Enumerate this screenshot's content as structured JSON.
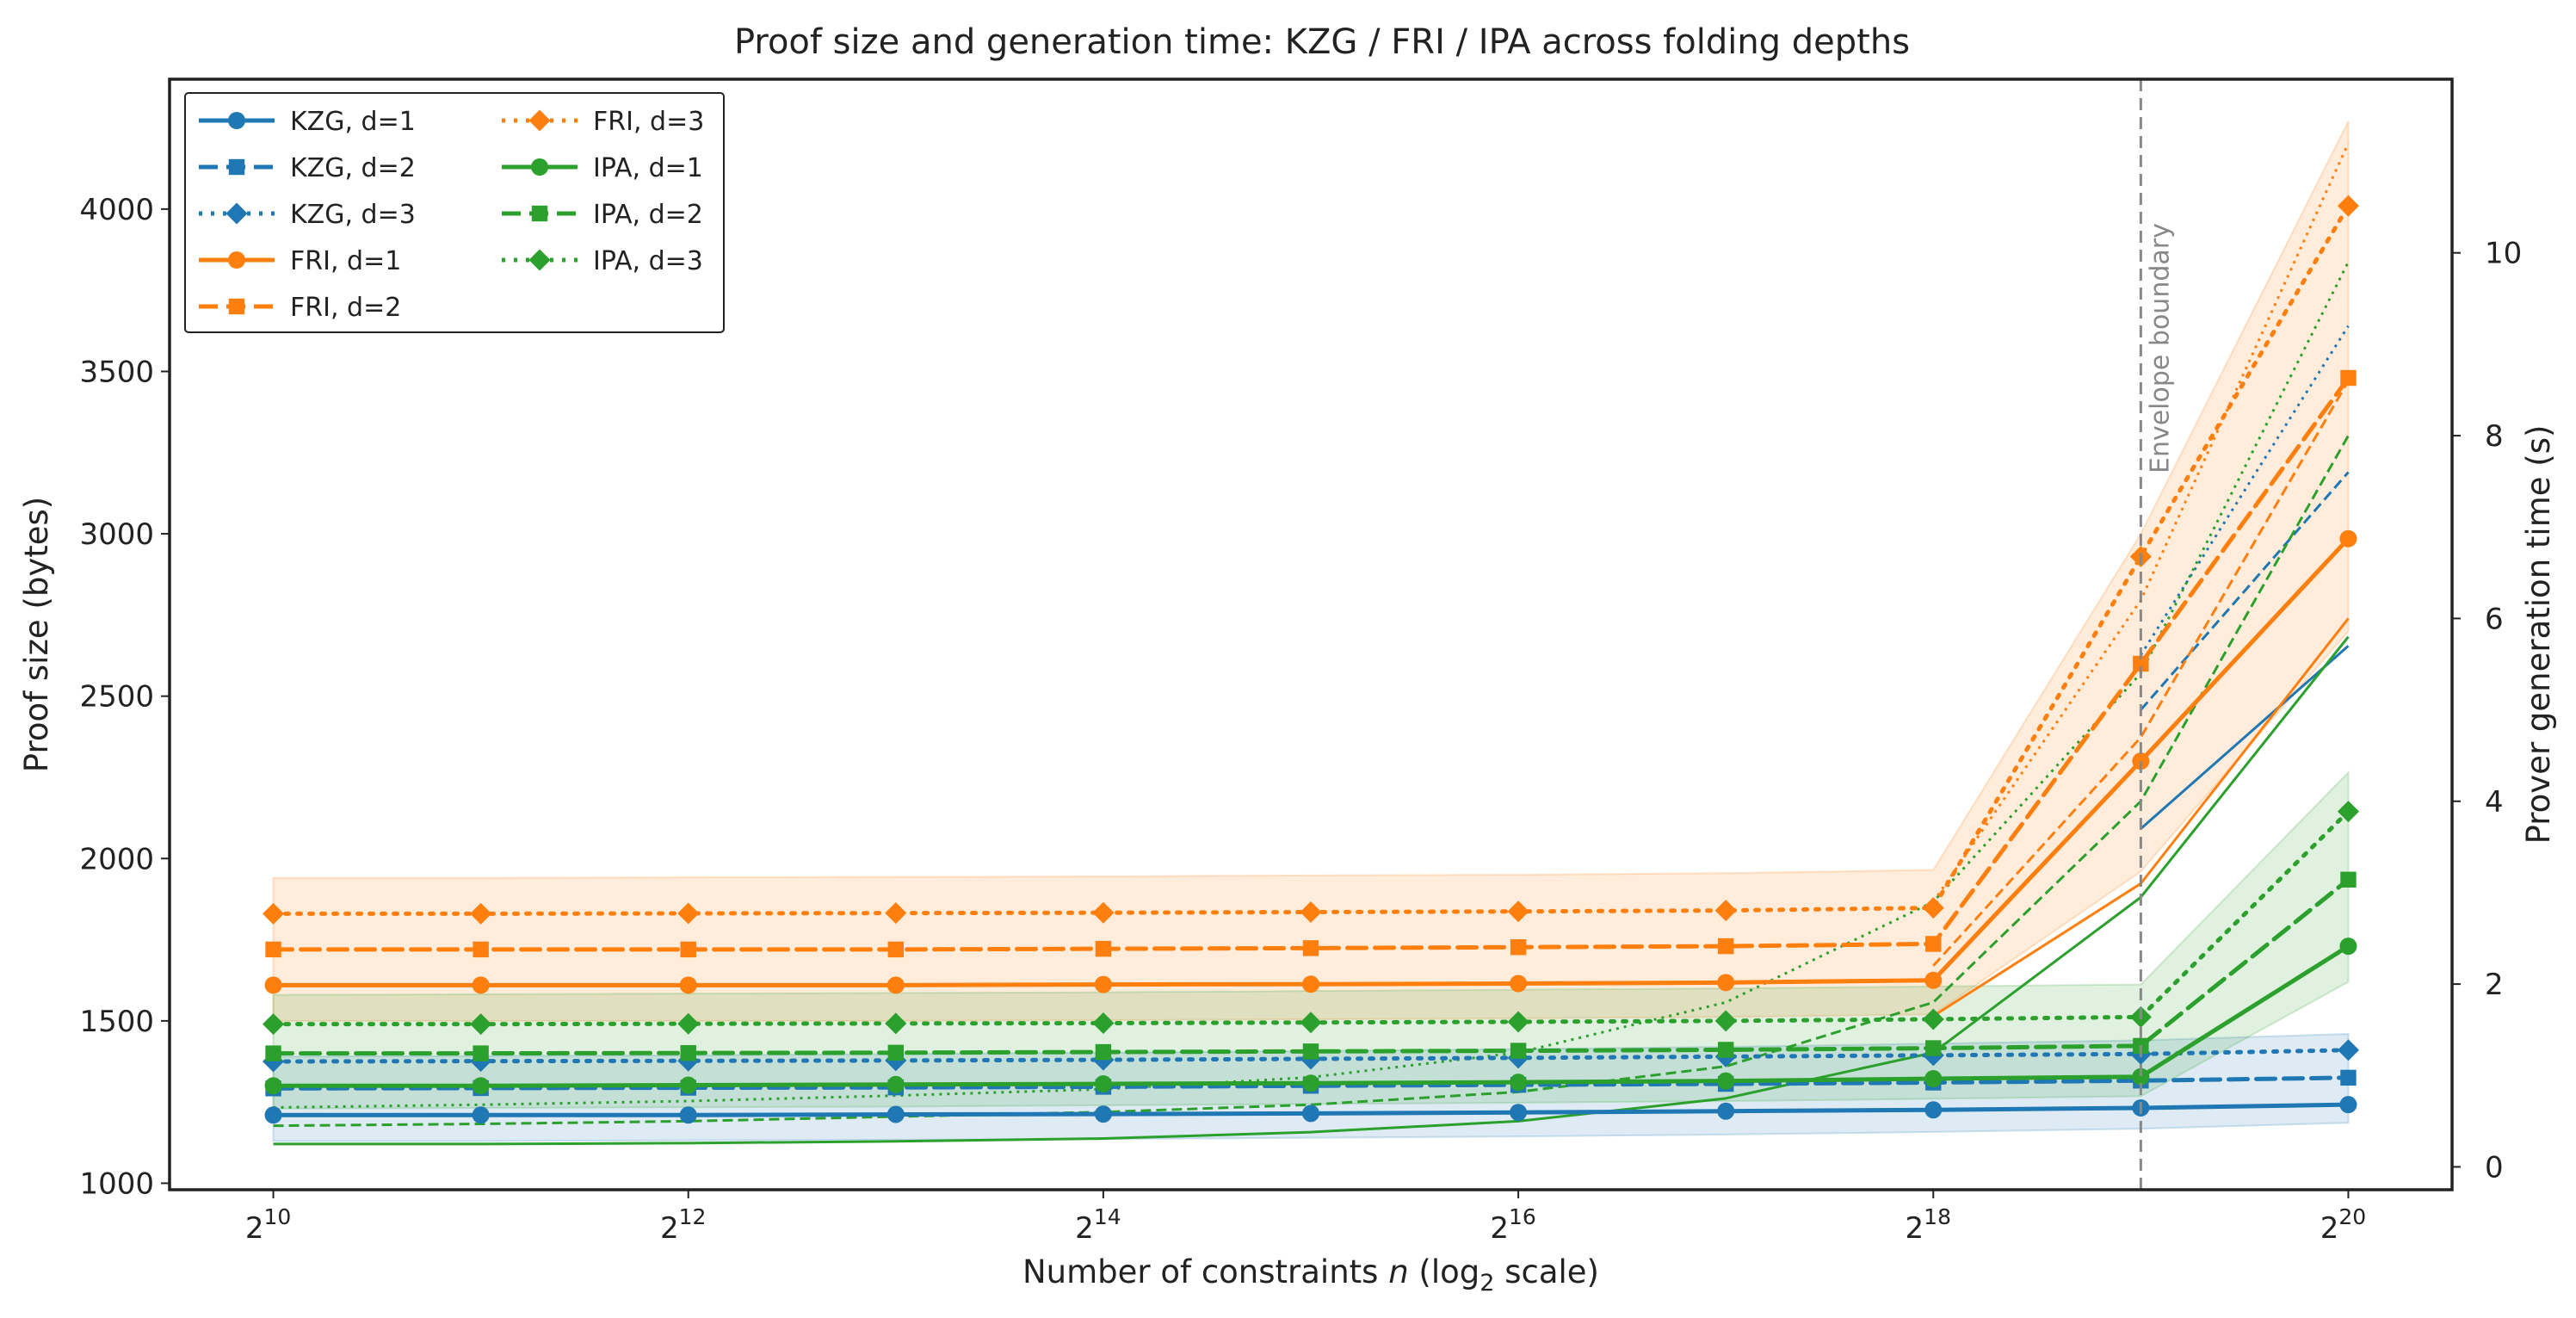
{
  "chart_data": {
    "type": "line",
    "title": "Proof size and generation time: KZG / FRI / IPA across folding depths",
    "xlabel": "Number of constraints n (log2 scale)",
    "ylabel": "Proof size (bytes)",
    "y2label": "Prover generation time (s)",
    "x_exponents": [
      10,
      11,
      12,
      13,
      14,
      15,
      16,
      17,
      18,
      19,
      20
    ],
    "xticks": [
      10,
      12,
      14,
      16,
      18,
      20
    ],
    "xtick_base": "2",
    "xlim": [
      9.5,
      20.5
    ],
    "ylim": [
      980,
      4400
    ],
    "yticks": [
      1000,
      1500,
      2000,
      2500,
      3000,
      3500,
      4000
    ],
    "y2lim": [
      -0.25,
      11.9
    ],
    "y2ticks": [
      0,
      2,
      4,
      6,
      8,
      10
    ],
    "colors": {
      "KZG": "#1f77b4",
      "FRI": "#ff7f0e",
      "IPA": "#2ca02c"
    },
    "series": [
      {
        "name": "KZG, d=1",
        "scheme": "KZG",
        "depth": 1,
        "marker": "circle",
        "dash": "solid",
        "band": 0,
        "values": [
          1210,
          1210,
          1210,
          1212,
          1213,
          1215,
          1218,
          1222,
          1226,
          1232,
          1242
        ]
      },
      {
        "name": "KZG, d=2",
        "scheme": "KZG",
        "depth": 2,
        "marker": "square",
        "dash": "dashed",
        "band": 0,
        "values": [
          1292,
          1293,
          1294,
          1295,
          1297,
          1300,
          1303,
          1306,
          1310,
          1316,
          1325
        ]
      },
      {
        "name": "KZG, d=3",
        "scheme": "KZG",
        "depth": 3,
        "marker": "diamond",
        "dash": "dotted",
        "band": 0,
        "values": [
          1375,
          1376,
          1377,
          1378,
          1380,
          1383,
          1386,
          1390,
          1394,
          1398,
          1410
        ]
      },
      {
        "name": "FRI, d=1",
        "scheme": "FRI",
        "depth": 1,
        "marker": "circle",
        "dash": "solid",
        "band": 1,
        "values": [
          1610,
          1610,
          1610,
          1610,
          1612,
          1613,
          1615,
          1618,
          1625,
          2300,
          2985
        ]
      },
      {
        "name": "FRI, d=2",
        "scheme": "FRI",
        "depth": 2,
        "marker": "square",
        "dash": "dashed",
        "band": 1,
        "values": [
          1720,
          1720,
          1720,
          1720,
          1722,
          1724,
          1727,
          1730,
          1737,
          2600,
          3480
        ]
      },
      {
        "name": "FRI, d=3",
        "scheme": "FRI",
        "depth": 3,
        "marker": "diamond",
        "dash": "dotted",
        "band": 1,
        "values": [
          1830,
          1830,
          1831,
          1832,
          1833,
          1835,
          1837,
          1840,
          1848,
          2930,
          4010
        ]
      },
      {
        "name": "IPA, d=1",
        "scheme": "IPA",
        "depth": 1,
        "marker": "circle",
        "dash": "solid",
        "band": 2,
        "values": [
          1300,
          1300,
          1302,
          1304,
          1306,
          1308,
          1311,
          1315,
          1322,
          1328,
          1730
        ]
      },
      {
        "name": "IPA, d=2",
        "scheme": "IPA",
        "depth": 2,
        "marker": "square",
        "dash": "dashed",
        "band": 2,
        "values": [
          1400,
          1400,
          1401,
          1402,
          1404,
          1406,
          1408,
          1411,
          1416,
          1423,
          1935
        ]
      },
      {
        "name": "IPA, d=3",
        "scheme": "IPA",
        "depth": 3,
        "marker": "diamond",
        "dash": "dotted",
        "band": 2,
        "values": [
          1490,
          1490,
          1491,
          1492,
          1493,
          1495,
          1497,
          1500,
          1505,
          1512,
          2145
        ]
      }
    ],
    "bands": [
      {
        "scheme": "KZG",
        "lower": [
          1130,
          1130,
          1132,
          1134,
          1136,
          1140,
          1144,
          1150,
          1158,
          1168,
          1186
        ],
        "upper": [
          1390,
          1392,
          1394,
          1398,
          1402,
          1407,
          1413,
          1420,
          1430,
          1440,
          1460
        ]
      },
      {
        "scheme": "FRI",
        "lower": [
          1500,
          1500,
          1500,
          1500,
          1502,
          1505,
          1508,
          1512,
          1520,
          1960,
          2700
        ],
        "upper": [
          1940,
          1940,
          1942,
          1943,
          1945,
          1948,
          1950,
          1955,
          1965,
          3000,
          4270
        ]
      },
      {
        "scheme": "IPA",
        "lower": [
          1230,
          1232,
          1234,
          1236,
          1240,
          1244,
          1248,
          1253,
          1260,
          1268,
          1620
        ],
        "upper": [
          1580,
          1582,
          1584,
          1586,
          1588,
          1592,
          1596,
          1600,
          1606,
          1612,
          2265
        ]
      }
    ],
    "time_series": [
      {
        "name": "KZG time d=1",
        "scheme": "KZG",
        "dash": "solid",
        "x": [
          19,
          20
        ],
        "values": [
          3.7,
          5.7
        ]
      },
      {
        "name": "KZG time d=2",
        "scheme": "KZG",
        "dash": "dashed",
        "x": [
          19,
          20
        ],
        "values": [
          5.0,
          7.6
        ]
      },
      {
        "name": "KZG time d=3",
        "scheme": "KZG",
        "dash": "dotted",
        "x": [
          19,
          20
        ],
        "values": [
          5.6,
          9.2
        ]
      },
      {
        "name": "FRI time d=1",
        "scheme": "FRI",
        "dash": "solid",
        "x": [
          18,
          19,
          20
        ],
        "values": [
          1.65,
          3.1,
          6.0
        ]
      },
      {
        "name": "FRI time d=2",
        "scheme": "FRI",
        "dash": "dashed",
        "x": [
          18,
          19,
          20
        ],
        "values": [
          2.2,
          4.7,
          8.6
        ]
      },
      {
        "name": "FRI time d=3",
        "scheme": "FRI",
        "dash": "dotted",
        "x": [
          18,
          19,
          20
        ],
        "values": [
          2.9,
          6.2,
          11.2
        ]
      },
      {
        "name": "IPA time d=1",
        "scheme": "IPA",
        "dash": "solid",
        "x": [
          10,
          11,
          12,
          13,
          14,
          15,
          16,
          17,
          18,
          19,
          20
        ],
        "values": [
          0.25,
          0.25,
          0.26,
          0.28,
          0.31,
          0.38,
          0.5,
          0.75,
          1.25,
          2.95,
          5.8
        ]
      },
      {
        "name": "IPA time d=2",
        "scheme": "IPA",
        "dash": "dashed",
        "x": [
          10,
          11,
          12,
          13,
          14,
          15,
          16,
          17,
          18,
          19,
          20
        ],
        "values": [
          0.45,
          0.47,
          0.5,
          0.55,
          0.6,
          0.68,
          0.82,
          1.1,
          1.8,
          4.0,
          8.0
        ]
      },
      {
        "name": "IPA time d=3",
        "scheme": "IPA",
        "dash": "dotted",
        "x": [
          10,
          11,
          12,
          13,
          14,
          15,
          16,
          17,
          18,
          19,
          20
        ],
        "values": [
          0.65,
          0.68,
          0.72,
          0.78,
          0.85,
          0.98,
          1.25,
          1.8,
          2.9,
          5.4,
          9.9
        ]
      }
    ],
    "annotation": {
      "text": "Envelope boundary",
      "x": 19
    },
    "legend": {
      "placement": "top-left",
      "columns": 2
    }
  }
}
